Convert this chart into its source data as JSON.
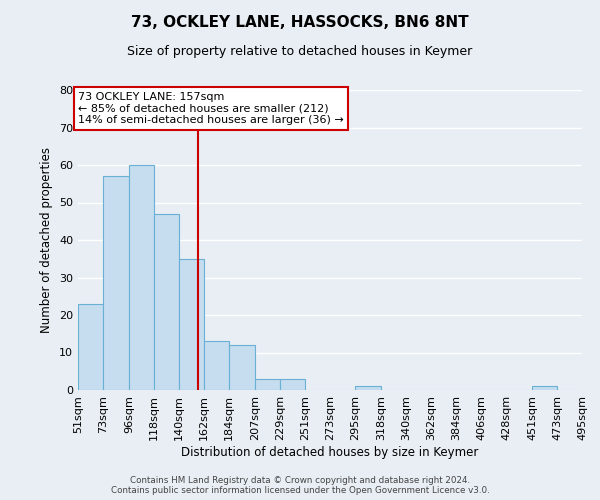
{
  "title": "73, OCKLEY LANE, HASSOCKS, BN6 8NT",
  "subtitle": "Size of property relative to detached houses in Keymer",
  "xlabel": "Distribution of detached houses by size in Keymer",
  "ylabel": "Number of detached properties",
  "bin_edges": [
    51,
    73,
    96,
    118,
    140,
    162,
    184,
    207,
    229,
    251,
    273,
    295,
    318,
    340,
    362,
    384,
    406,
    428,
    451,
    473,
    495
  ],
  "bin_labels": [
    "51sqm",
    "73sqm",
    "96sqm",
    "118sqm",
    "140sqm",
    "162sqm",
    "184sqm",
    "207sqm",
    "229sqm",
    "251sqm",
    "273sqm",
    "295sqm",
    "318sqm",
    "340sqm",
    "362sqm",
    "384sqm",
    "406sqm",
    "428sqm",
    "451sqm",
    "473sqm",
    "495sqm"
  ],
  "counts": [
    23,
    57,
    60,
    47,
    35,
    13,
    12,
    3,
    3,
    0,
    0,
    1,
    0,
    0,
    0,
    0,
    0,
    0,
    1,
    0
  ],
  "bar_color": "#c6ddef",
  "bar_edge_color": "#6aafd4",
  "vline_x": 157,
  "vline_color": "#cc0000",
  "ylim": [
    0,
    80
  ],
  "yticks": [
    0,
    10,
    20,
    30,
    40,
    50,
    60,
    70,
    80
  ],
  "annotation_title": "73 OCKLEY LANE: 157sqm",
  "annotation_line1": "← 85% of detached houses are smaller (212)",
  "annotation_line2": "14% of semi-detached houses are larger (36) →",
  "annotation_box_color": "#ffffff",
  "annotation_box_edge": "#cc0000",
  "footer_line1": "Contains HM Land Registry data © Crown copyright and database right 2024.",
  "footer_line2": "Contains public sector information licensed under the Open Government Licence v3.0.",
  "bg_color": "#e8eef4",
  "grid_color": "#ffffff"
}
